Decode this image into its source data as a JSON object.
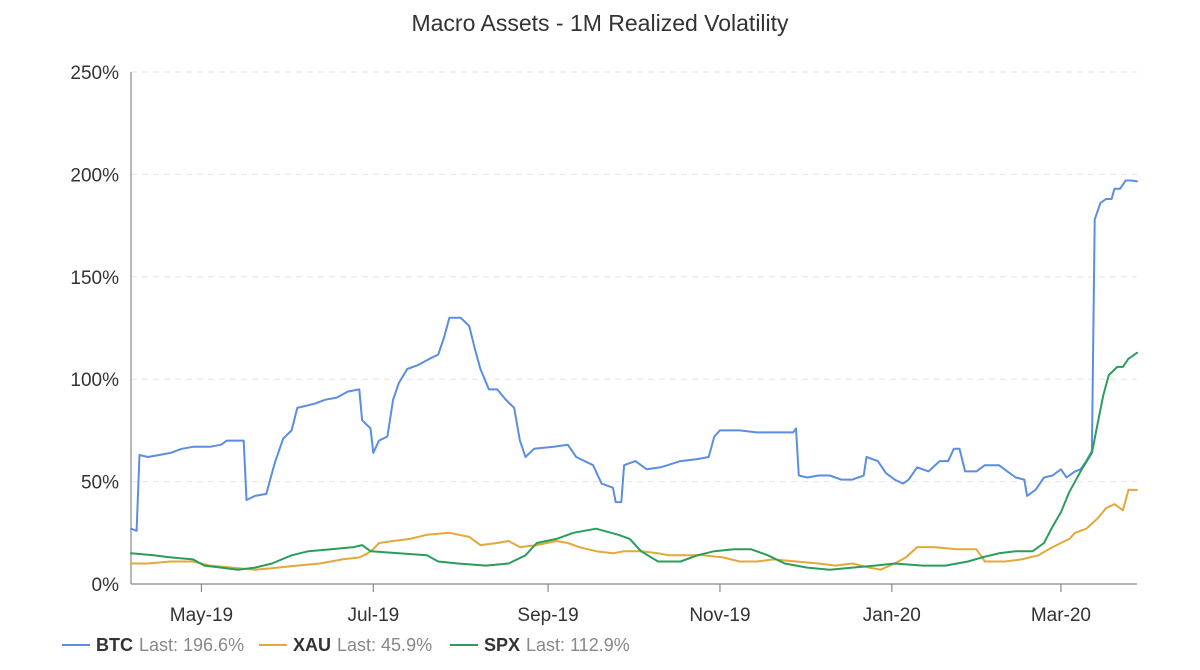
{
  "chart_data": {
    "type": "line",
    "title": "Macro Assets - 1M Realized Volatility",
    "x_range": [
      "2019-04-06",
      "2020-03-28"
    ],
    "x_ticks": [
      {
        "date": "2019-05-01",
        "label": "May-19"
      },
      {
        "date": "2019-07-01",
        "label": "Jul-19"
      },
      {
        "date": "2019-09-01",
        "label": "Sep-19"
      },
      {
        "date": "2019-11-01",
        "label": "Nov-19"
      },
      {
        "date": "2020-01-01",
        "label": "Jan-20"
      },
      {
        "date": "2020-03-01",
        "label": "Mar-20"
      }
    ],
    "y_ticks": [
      {
        "value": 0,
        "label": "0%"
      },
      {
        "value": 50,
        "label": "50%"
      },
      {
        "value": 100,
        "label": "100%"
      },
      {
        "value": 150,
        "label": "150%"
      },
      {
        "value": 200,
        "label": "200%"
      },
      {
        "value": 250,
        "label": "250%"
      }
    ],
    "ylim": [
      0,
      250
    ],
    "y_unit": "%",
    "grid": true,
    "legend_position": "bottom-left",
    "series": [
      {
        "name": "BTC",
        "legend_last": "Last: 196.6%",
        "color": "#5b8ee0",
        "points": [
          [
            "2019-04-06",
            27
          ],
          [
            "2019-04-08",
            26
          ],
          [
            "2019-04-09",
            63
          ],
          [
            "2019-04-12",
            62
          ],
          [
            "2019-04-16",
            63
          ],
          [
            "2019-04-20",
            64
          ],
          [
            "2019-04-24",
            66
          ],
          [
            "2019-04-28",
            67
          ],
          [
            "2019-05-04",
            67
          ],
          [
            "2019-05-08",
            68
          ],
          [
            "2019-05-10",
            70
          ],
          [
            "2019-05-16",
            70
          ],
          [
            "2019-05-17",
            41
          ],
          [
            "2019-05-20",
            43
          ],
          [
            "2019-05-24",
            44
          ],
          [
            "2019-05-27",
            59
          ],
          [
            "2019-05-30",
            71
          ],
          [
            "2019-06-02",
            75
          ],
          [
            "2019-06-04",
            86
          ],
          [
            "2019-06-10",
            88
          ],
          [
            "2019-06-14",
            90
          ],
          [
            "2019-06-18",
            91
          ],
          [
            "2019-06-22",
            94
          ],
          [
            "2019-06-26",
            95
          ],
          [
            "2019-06-27",
            80
          ],
          [
            "2019-06-30",
            76
          ],
          [
            "2019-07-01",
            64
          ],
          [
            "2019-07-03",
            70
          ],
          [
            "2019-07-06",
            72
          ],
          [
            "2019-07-08",
            90
          ],
          [
            "2019-07-10",
            98
          ],
          [
            "2019-07-13",
            105
          ],
          [
            "2019-07-17",
            107
          ],
          [
            "2019-07-21",
            110
          ],
          [
            "2019-07-24",
            112
          ],
          [
            "2019-07-26",
            120
          ],
          [
            "2019-07-28",
            130
          ],
          [
            "2019-08-01",
            130
          ],
          [
            "2019-08-04",
            126
          ],
          [
            "2019-08-06",
            115
          ],
          [
            "2019-08-08",
            105
          ],
          [
            "2019-08-11",
            95
          ],
          [
            "2019-08-14",
            95
          ],
          [
            "2019-08-17",
            90
          ],
          [
            "2019-08-20",
            86
          ],
          [
            "2019-08-22",
            70
          ],
          [
            "2019-08-24",
            62
          ],
          [
            "2019-08-27",
            66
          ],
          [
            "2019-09-03",
            67
          ],
          [
            "2019-09-08",
            68
          ],
          [
            "2019-09-11",
            62
          ],
          [
            "2019-09-17",
            58
          ],
          [
            "2019-09-20",
            49
          ],
          [
            "2019-09-24",
            47
          ],
          [
            "2019-09-25",
            40
          ],
          [
            "2019-09-27",
            40
          ],
          [
            "2019-09-28",
            58
          ],
          [
            "2019-10-02",
            60
          ],
          [
            "2019-10-06",
            56
          ],
          [
            "2019-10-11",
            57
          ],
          [
            "2019-10-18",
            60
          ],
          [
            "2019-10-24",
            61
          ],
          [
            "2019-10-28",
            62
          ],
          [
            "2019-10-30",
            72
          ],
          [
            "2019-11-01",
            75
          ],
          [
            "2019-11-08",
            75
          ],
          [
            "2019-11-14",
            74
          ],
          [
            "2019-11-20",
            74
          ],
          [
            "2019-11-27",
            74
          ],
          [
            "2019-11-28",
            76
          ],
          [
            "2019-11-29",
            53
          ],
          [
            "2019-12-02",
            52
          ],
          [
            "2019-12-06",
            53
          ],
          [
            "2019-12-10",
            53
          ],
          [
            "2019-12-14",
            51
          ],
          [
            "2019-12-18",
            51
          ],
          [
            "2019-12-22",
            53
          ],
          [
            "2019-12-23",
            62
          ],
          [
            "2019-12-27",
            60
          ],
          [
            "2019-12-30",
            54
          ],
          [
            "2020-01-02",
            51
          ],
          [
            "2020-01-05",
            49
          ],
          [
            "2020-01-07",
            51
          ],
          [
            "2020-01-10",
            57
          ],
          [
            "2020-01-14",
            55
          ],
          [
            "2020-01-18",
            60
          ],
          [
            "2020-01-21",
            60
          ],
          [
            "2020-01-23",
            66
          ],
          [
            "2020-01-25",
            66
          ],
          [
            "2020-01-27",
            55
          ],
          [
            "2020-01-31",
            55
          ],
          [
            "2020-02-03",
            58
          ],
          [
            "2020-02-08",
            58
          ],
          [
            "2020-02-11",
            55
          ],
          [
            "2020-02-14",
            52
          ],
          [
            "2020-02-17",
            51
          ],
          [
            "2020-02-18",
            43
          ],
          [
            "2020-02-21",
            46
          ],
          [
            "2020-02-24",
            52
          ],
          [
            "2020-02-27",
            53
          ],
          [
            "2020-03-01",
            56
          ],
          [
            "2020-03-03",
            52
          ],
          [
            "2020-03-06",
            55
          ],
          [
            "2020-03-08",
            56
          ],
          [
            "2020-03-10",
            60
          ],
          [
            "2020-03-12",
            65
          ],
          [
            "2020-03-13",
            178
          ],
          [
            "2020-03-15",
            186
          ],
          [
            "2020-03-17",
            188
          ],
          [
            "2020-03-19",
            188
          ],
          [
            "2020-03-20",
            193
          ],
          [
            "2020-03-22",
            193
          ],
          [
            "2020-03-24",
            197
          ],
          [
            "2020-03-26",
            197
          ],
          [
            "2020-03-28",
            196.6
          ]
        ]
      },
      {
        "name": "XAU",
        "legend_last": "Last: 45.9%",
        "color": "#e3a83a",
        "points": [
          [
            "2019-04-06",
            10
          ],
          [
            "2019-04-12",
            10
          ],
          [
            "2019-04-20",
            11
          ],
          [
            "2019-04-28",
            11
          ],
          [
            "2019-05-04",
            9
          ],
          [
            "2019-05-12",
            8
          ],
          [
            "2019-05-20",
            7
          ],
          [
            "2019-05-28",
            8
          ],
          [
            "2019-06-04",
            9
          ],
          [
            "2019-06-12",
            10
          ],
          [
            "2019-06-20",
            12
          ],
          [
            "2019-06-26",
            13
          ],
          [
            "2019-06-29",
            15
          ],
          [
            "2019-07-01",
            17
          ],
          [
            "2019-07-03",
            20
          ],
          [
            "2019-07-08",
            21
          ],
          [
            "2019-07-14",
            22
          ],
          [
            "2019-07-20",
            24
          ],
          [
            "2019-07-28",
            25
          ],
          [
            "2019-08-04",
            23
          ],
          [
            "2019-08-08",
            19
          ],
          [
            "2019-08-14",
            20
          ],
          [
            "2019-08-18",
            21
          ],
          [
            "2019-08-22",
            18
          ],
          [
            "2019-08-28",
            19
          ],
          [
            "2019-09-04",
            21
          ],
          [
            "2019-09-08",
            20
          ],
          [
            "2019-09-12",
            18
          ],
          [
            "2019-09-18",
            16
          ],
          [
            "2019-09-24",
            15
          ],
          [
            "2019-09-28",
            16
          ],
          [
            "2019-10-04",
            16
          ],
          [
            "2019-10-10",
            15
          ],
          [
            "2019-10-14",
            14
          ],
          [
            "2019-10-20",
            14
          ],
          [
            "2019-10-26",
            14
          ],
          [
            "2019-11-02",
            13
          ],
          [
            "2019-11-08",
            11
          ],
          [
            "2019-11-14",
            11
          ],
          [
            "2019-11-20",
            12
          ],
          [
            "2019-11-28",
            11
          ],
          [
            "2019-12-06",
            10
          ],
          [
            "2019-12-12",
            9
          ],
          [
            "2019-12-18",
            10
          ],
          [
            "2019-12-24",
            8
          ],
          [
            "2019-12-28",
            7
          ],
          [
            "2020-01-02",
            10
          ],
          [
            "2020-01-06",
            13
          ],
          [
            "2020-01-10",
            18
          ],
          [
            "2020-01-16",
            18
          ],
          [
            "2020-01-24",
            17
          ],
          [
            "2020-01-31",
            17
          ],
          [
            "2020-02-03",
            11
          ],
          [
            "2020-02-10",
            11
          ],
          [
            "2020-02-16",
            12
          ],
          [
            "2020-02-22",
            14
          ],
          [
            "2020-02-27",
            18
          ],
          [
            "2020-03-01",
            20
          ],
          [
            "2020-03-04",
            22
          ],
          [
            "2020-03-06",
            25
          ],
          [
            "2020-03-10",
            27
          ],
          [
            "2020-03-14",
            32
          ],
          [
            "2020-03-17",
            37
          ],
          [
            "2020-03-20",
            39
          ],
          [
            "2020-03-23",
            36
          ],
          [
            "2020-03-25",
            46
          ],
          [
            "2020-03-28",
            45.9
          ]
        ]
      },
      {
        "name": "SPX",
        "legend_last": "Last: 112.9%",
        "color": "#2a9d5c",
        "points": [
          [
            "2019-04-06",
            15
          ],
          [
            "2019-04-14",
            14
          ],
          [
            "2019-04-20",
            13
          ],
          [
            "2019-04-28",
            12
          ],
          [
            "2019-05-02",
            9
          ],
          [
            "2019-05-08",
            8
          ],
          [
            "2019-05-14",
            7
          ],
          [
            "2019-05-20",
            8
          ],
          [
            "2019-05-26",
            10
          ],
          [
            "2019-06-02",
            14
          ],
          [
            "2019-06-08",
            16
          ],
          [
            "2019-06-16",
            17
          ],
          [
            "2019-06-24",
            18
          ],
          [
            "2019-06-27",
            19
          ],
          [
            "2019-06-30",
            16
          ],
          [
            "2019-07-10",
            15
          ],
          [
            "2019-07-20",
            14
          ],
          [
            "2019-07-24",
            11
          ],
          [
            "2019-07-31",
            10
          ],
          [
            "2019-08-10",
            9
          ],
          [
            "2019-08-18",
            10
          ],
          [
            "2019-08-24",
            14
          ],
          [
            "2019-08-28",
            20
          ],
          [
            "2019-09-04",
            22
          ],
          [
            "2019-09-10",
            25
          ],
          [
            "2019-09-18",
            27
          ],
          [
            "2019-09-26",
            24
          ],
          [
            "2019-09-30",
            22
          ],
          [
            "2019-10-04",
            16
          ],
          [
            "2019-10-10",
            11
          ],
          [
            "2019-10-18",
            11
          ],
          [
            "2019-10-24",
            14
          ],
          [
            "2019-10-30",
            16
          ],
          [
            "2019-11-06",
            17
          ],
          [
            "2019-11-12",
            17
          ],
          [
            "2019-11-18",
            14
          ],
          [
            "2019-11-24",
            10
          ],
          [
            "2019-12-02",
            8
          ],
          [
            "2019-12-10",
            7
          ],
          [
            "2019-12-18",
            8
          ],
          [
            "2019-12-26",
            9
          ],
          [
            "2020-01-02",
            10
          ],
          [
            "2020-01-12",
            9
          ],
          [
            "2020-01-20",
            9
          ],
          [
            "2020-01-28",
            11
          ],
          [
            "2020-02-02",
            13
          ],
          [
            "2020-02-08",
            15
          ],
          [
            "2020-02-14",
            16
          ],
          [
            "2020-02-20",
            16
          ],
          [
            "2020-02-24",
            20
          ],
          [
            "2020-02-27",
            28
          ],
          [
            "2020-03-01",
            35
          ],
          [
            "2020-03-04",
            45
          ],
          [
            "2020-03-08",
            55
          ],
          [
            "2020-03-12",
            64
          ],
          [
            "2020-03-14",
            78
          ],
          [
            "2020-03-16",
            92
          ],
          [
            "2020-03-18",
            102
          ],
          [
            "2020-03-21",
            106
          ],
          [
            "2020-03-23",
            106
          ],
          [
            "2020-03-25",
            110
          ],
          [
            "2020-03-28",
            112.9
          ]
        ]
      }
    ]
  }
}
